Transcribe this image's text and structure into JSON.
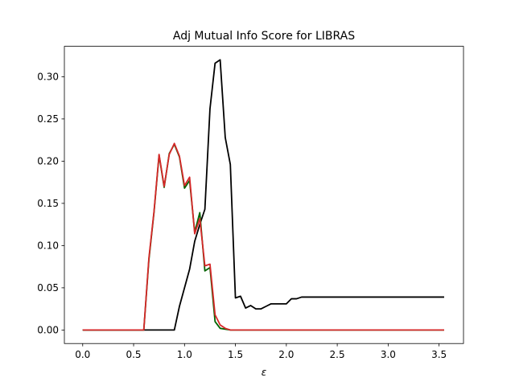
{
  "chart_data": {
    "type": "line",
    "title": "Adj Mutual Info Score for LIBRAS",
    "xlabel": "ε",
    "ylabel": "",
    "xlim": [
      -0.18,
      3.74
    ],
    "ylim": [
      -0.016,
      0.336
    ],
    "xticks": [
      0.0,
      0.5,
      1.0,
      1.5,
      2.0,
      2.5,
      3.0,
      3.5
    ],
    "xtick_labels": [
      "0.0",
      "0.5",
      "1.0",
      "1.5",
      "2.0",
      "2.5",
      "3.0",
      "3.5"
    ],
    "yticks": [
      0.0,
      0.05,
      0.1,
      0.15,
      0.2,
      0.25,
      0.3
    ],
    "ytick_labels": [
      "0.00",
      "0.05",
      "0.10",
      "0.15",
      "0.20",
      "0.25",
      "0.30"
    ],
    "grid": false,
    "legend": "none",
    "series": [
      {
        "color": "#000000",
        "x": [
          0.0,
          0.1,
          0.2,
          0.3,
          0.4,
          0.5,
          0.6,
          0.65,
          0.7,
          0.75,
          0.8,
          0.85,
          0.9,
          0.95,
          1.0,
          1.05,
          1.1,
          1.15,
          1.2,
          1.25,
          1.3,
          1.35,
          1.4,
          1.45,
          1.5,
          1.55,
          1.6,
          1.65,
          1.7,
          1.75,
          1.8,
          1.85,
          1.9,
          1.95,
          2.0,
          2.05,
          2.1,
          2.15,
          2.2,
          2.3,
          2.4,
          2.5,
          2.6,
          2.7,
          2.8,
          2.9,
          3.0,
          3.1,
          3.2,
          3.3,
          3.4,
          3.5,
          3.55
        ],
        "values": [
          0.0,
          0.0,
          0.0,
          0.0,
          0.0,
          0.0,
          0.0,
          0.0,
          0.0,
          0.0,
          0.0,
          0.0,
          0.0,
          0.028,
          0.05,
          0.072,
          0.105,
          0.125,
          0.143,
          0.262,
          0.316,
          0.32,
          0.228,
          0.196,
          0.038,
          0.04,
          0.026,
          0.029,
          0.025,
          0.025,
          0.028,
          0.031,
          0.031,
          0.031,
          0.031,
          0.037,
          0.037,
          0.039,
          0.039,
          0.039,
          0.039,
          0.039,
          0.039,
          0.039,
          0.039,
          0.039,
          0.039,
          0.039,
          0.039,
          0.039,
          0.039,
          0.039,
          0.039
        ]
      },
      {
        "color": "#006400",
        "x": [
          0.0,
          0.1,
          0.2,
          0.3,
          0.4,
          0.5,
          0.6,
          0.65,
          0.7,
          0.75,
          0.8,
          0.85,
          0.9,
          0.95,
          1.0,
          1.05,
          1.1,
          1.15,
          1.2,
          1.25,
          1.3,
          1.35,
          1.4,
          1.45,
          1.5,
          1.6,
          1.8,
          2.0,
          2.5,
          3.0,
          3.55
        ],
        "values": [
          0.0,
          0.0,
          0.0,
          0.0,
          0.0,
          0.0,
          0.0,
          0.083,
          0.139,
          0.207,
          0.169,
          0.209,
          0.22,
          0.205,
          0.168,
          0.177,
          0.116,
          0.139,
          0.07,
          0.074,
          0.01,
          0.002,
          0.001,
          0.0,
          0.0,
          0.0,
          0.0,
          0.0,
          0.0,
          0.0,
          0.0
        ]
      },
      {
        "color": "#d62728",
        "x": [
          0.0,
          0.1,
          0.2,
          0.3,
          0.4,
          0.5,
          0.6,
          0.65,
          0.7,
          0.75,
          0.8,
          0.85,
          0.9,
          0.95,
          1.0,
          1.05,
          1.1,
          1.15,
          1.2,
          1.25,
          1.3,
          1.35,
          1.4,
          1.45,
          1.5,
          1.6,
          1.8,
          2.0,
          2.5,
          3.0,
          3.55
        ],
        "values": [
          0.0,
          0.0,
          0.0,
          0.0,
          0.0,
          0.0,
          0.0,
          0.085,
          0.14,
          0.208,
          0.17,
          0.208,
          0.221,
          0.206,
          0.171,
          0.181,
          0.114,
          0.132,
          0.076,
          0.078,
          0.018,
          0.006,
          0.002,
          0.0,
          0.0,
          0.0,
          0.0,
          0.0,
          0.0,
          0.0,
          0.0
        ]
      }
    ]
  }
}
